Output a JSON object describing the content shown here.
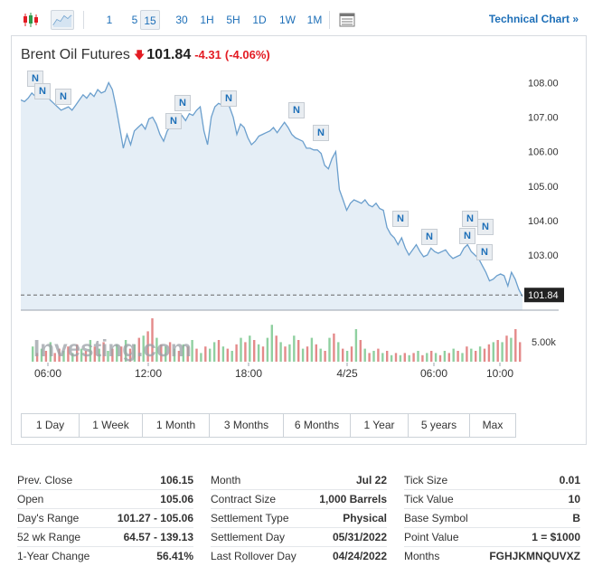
{
  "toolbar": {
    "intervals": [
      "1",
      "5",
      "15",
      "30",
      "1H",
      "5H",
      "1D",
      "1W",
      "1M"
    ],
    "active_interval": "15",
    "technical_link": "Technical Chart »"
  },
  "title": {
    "name": "Brent Oil Futures",
    "price": "101.84",
    "change": "-4.31",
    "change_pct": "(-4.06%)",
    "direction": "down"
  },
  "colors": {
    "accent": "#1d6fb8",
    "down": "#e31b23",
    "up": "#2e9a4a",
    "area_fill": "#e5eef6",
    "line": "#6b9fcd"
  },
  "chart_data": {
    "type": "area",
    "xlabel": "",
    "ylabel": "",
    "x_tick_labels": [
      "06:00",
      "12:00",
      "18:00",
      "4/25",
      "06:00",
      "10:00"
    ],
    "y_tick_labels": [
      "108.00",
      "107.00",
      "106.00",
      "105.00",
      "104.00",
      "103.00"
    ],
    "ylim": [
      101.4,
      108.3
    ],
    "current_price_label": "101.84",
    "volume_axis_label": "5.00k",
    "grid": false,
    "price_series": [
      107.5,
      107.45,
      107.55,
      107.7,
      107.6,
      107.75,
      107.85,
      107.7,
      107.5,
      107.4,
      107.3,
      107.2,
      107.25,
      107.3,
      107.2,
      107.35,
      107.5,
      107.65,
      107.55,
      107.7,
      107.6,
      107.8,
      107.7,
      107.75,
      108.0,
      107.8,
      107.3,
      106.7,
      106.1,
      106.5,
      106.2,
      106.6,
      106.7,
      106.8,
      106.65,
      106.95,
      107.0,
      106.8,
      106.5,
      106.3,
      106.6,
      106.75,
      106.9,
      107.0,
      107.05,
      106.9,
      107.1,
      107.05,
      107.2,
      107.3,
      106.6,
      106.2,
      107.0,
      107.3,
      107.4,
      107.35,
      107.4,
      107.3,
      107.0,
      106.5,
      106.8,
      106.7,
      106.4,
      106.2,
      106.3,
      106.45,
      106.5,
      106.55,
      106.6,
      106.7,
      106.55,
      106.7,
      106.85,
      106.7,
      106.5,
      106.4,
      106.35,
      106.3,
      106.1,
      106.1,
      106.05,
      106.05,
      105.95,
      105.6,
      105.5,
      105.8,
      106.0,
      104.9,
      104.6,
      104.3,
      104.5,
      104.6,
      104.55,
      104.5,
      104.6,
      104.45,
      104.4,
      104.5,
      104.35,
      104.3,
      103.8,
      103.6,
      103.5,
      103.3,
      103.5,
      103.2,
      103.0,
      103.15,
      103.3,
      103.1,
      102.95,
      103.0,
      103.2,
      103.1,
      103.05,
      103.1,
      103.15,
      103.0,
      102.9,
      102.95,
      103.0,
      103.2,
      103.3,
      103.1,
      103.0,
      102.9,
      102.7,
      102.5,
      102.25,
      102.3,
      102.4,
      102.45,
      102.4,
      102.1,
      102.5,
      102.3,
      102.0,
      101.8
    ],
    "volume_series": [
      {
        "v": 0.35,
        "d": "up"
      },
      {
        "v": 0.2,
        "d": "down"
      },
      {
        "v": 0.3,
        "d": "up"
      },
      {
        "v": 0.25,
        "d": "down"
      },
      {
        "v": 0.45,
        "d": "up"
      },
      {
        "v": 0.2,
        "d": "down"
      },
      {
        "v": 0.3,
        "d": "down"
      },
      {
        "v": 0.25,
        "d": "up"
      },
      {
        "v": 0.35,
        "d": "down"
      },
      {
        "v": 0.2,
        "d": "up"
      },
      {
        "v": 0.4,
        "d": "down"
      },
      {
        "v": 0.3,
        "d": "up"
      },
      {
        "v": 0.25,
        "d": "down"
      },
      {
        "v": 0.5,
        "d": "up"
      },
      {
        "v": 0.35,
        "d": "down"
      },
      {
        "v": 0.3,
        "d": "up"
      },
      {
        "v": 0.45,
        "d": "down"
      },
      {
        "v": 0.25,
        "d": "up"
      },
      {
        "v": 0.3,
        "d": "down"
      },
      {
        "v": 0.4,
        "d": "up"
      },
      {
        "v": 0.35,
        "d": "down"
      },
      {
        "v": 0.5,
        "d": "up"
      },
      {
        "v": 0.3,
        "d": "down"
      },
      {
        "v": 0.4,
        "d": "up"
      },
      {
        "v": 0.55,
        "d": "down"
      },
      {
        "v": 0.6,
        "d": "up"
      },
      {
        "v": 0.7,
        "d": "down"
      },
      {
        "v": 1.0,
        "d": "down"
      },
      {
        "v": 0.55,
        "d": "up"
      },
      {
        "v": 0.4,
        "d": "down"
      },
      {
        "v": 0.35,
        "d": "up"
      },
      {
        "v": 0.45,
        "d": "down"
      },
      {
        "v": 0.3,
        "d": "up"
      },
      {
        "v": 0.25,
        "d": "down"
      },
      {
        "v": 0.4,
        "d": "up"
      },
      {
        "v": 0.35,
        "d": "down"
      },
      {
        "v": 0.5,
        "d": "up"
      },
      {
        "v": 0.3,
        "d": "down"
      },
      {
        "v": 0.2,
        "d": "up"
      },
      {
        "v": 0.35,
        "d": "down"
      },
      {
        "v": 0.3,
        "d": "up"
      },
      {
        "v": 0.45,
        "d": "up"
      },
      {
        "v": 0.5,
        "d": "down"
      },
      {
        "v": 0.35,
        "d": "up"
      },
      {
        "v": 0.3,
        "d": "down"
      },
      {
        "v": 0.25,
        "d": "up"
      },
      {
        "v": 0.4,
        "d": "down"
      },
      {
        "v": 0.55,
        "d": "up"
      },
      {
        "v": 0.45,
        "d": "down"
      },
      {
        "v": 0.6,
        "d": "up"
      },
      {
        "v": 0.5,
        "d": "down"
      },
      {
        "v": 0.4,
        "d": "up"
      },
      {
        "v": 0.35,
        "d": "down"
      },
      {
        "v": 0.55,
        "d": "up"
      },
      {
        "v": 0.85,
        "d": "up"
      },
      {
        "v": 0.6,
        "d": "down"
      },
      {
        "v": 0.45,
        "d": "up"
      },
      {
        "v": 0.35,
        "d": "down"
      },
      {
        "v": 0.4,
        "d": "up"
      },
      {
        "v": 0.6,
        "d": "up"
      },
      {
        "v": 0.5,
        "d": "down"
      },
      {
        "v": 0.3,
        "d": "up"
      },
      {
        "v": 0.35,
        "d": "down"
      },
      {
        "v": 0.55,
        "d": "up"
      },
      {
        "v": 0.4,
        "d": "down"
      },
      {
        "v": 0.3,
        "d": "up"
      },
      {
        "v": 0.25,
        "d": "down"
      },
      {
        "v": 0.55,
        "d": "up"
      },
      {
        "v": 0.65,
        "d": "down"
      },
      {
        "v": 0.45,
        "d": "up"
      },
      {
        "v": 0.3,
        "d": "down"
      },
      {
        "v": 0.25,
        "d": "up"
      },
      {
        "v": 0.35,
        "d": "down"
      },
      {
        "v": 0.75,
        "d": "up"
      },
      {
        "v": 0.5,
        "d": "down"
      },
      {
        "v": 0.3,
        "d": "up"
      },
      {
        "v": 0.2,
        "d": "down"
      },
      {
        "v": 0.25,
        "d": "up"
      },
      {
        "v": 0.3,
        "d": "down"
      },
      {
        "v": 0.2,
        "d": "up"
      },
      {
        "v": 0.25,
        "d": "down"
      },
      {
        "v": 0.15,
        "d": "up"
      },
      {
        "v": 0.2,
        "d": "down"
      },
      {
        "v": 0.15,
        "d": "up"
      },
      {
        "v": 0.2,
        "d": "down"
      },
      {
        "v": 0.15,
        "d": "up"
      },
      {
        "v": 0.2,
        "d": "down"
      },
      {
        "v": 0.25,
        "d": "up"
      },
      {
        "v": 0.15,
        "d": "down"
      },
      {
        "v": 0.2,
        "d": "up"
      },
      {
        "v": 0.25,
        "d": "down"
      },
      {
        "v": 0.2,
        "d": "up"
      },
      {
        "v": 0.15,
        "d": "down"
      },
      {
        "v": 0.25,
        "d": "up"
      },
      {
        "v": 0.2,
        "d": "down"
      },
      {
        "v": 0.3,
        "d": "up"
      },
      {
        "v": 0.25,
        "d": "down"
      },
      {
        "v": 0.2,
        "d": "up"
      },
      {
        "v": 0.35,
        "d": "down"
      },
      {
        "v": 0.3,
        "d": "up"
      },
      {
        "v": 0.25,
        "d": "down"
      },
      {
        "v": 0.35,
        "d": "up"
      },
      {
        "v": 0.3,
        "d": "down"
      },
      {
        "v": 0.4,
        "d": "down"
      },
      {
        "v": 0.45,
        "d": "up"
      },
      {
        "v": 0.5,
        "d": "down"
      },
      {
        "v": 0.45,
        "d": "up"
      },
      {
        "v": 0.6,
        "d": "down"
      },
      {
        "v": 0.55,
        "d": "up"
      },
      {
        "v": 0.75,
        "d": "down"
      },
      {
        "v": 0.45,
        "d": "down"
      }
    ],
    "news_markers": [
      "N",
      "N",
      "N",
      "N",
      "N",
      "N",
      "N",
      "N",
      "N",
      "N",
      "N",
      "N",
      "N",
      "N",
      "N"
    ],
    "watermark": "Investing.com"
  },
  "ranges": [
    "1 Day",
    "1 Week",
    "1 Month",
    "3 Months",
    "6 Months",
    "1 Year",
    "5 years",
    "Max"
  ],
  "info": {
    "col1": [
      {
        "label": "Prev. Close",
        "value": "106.15"
      },
      {
        "label": "Open",
        "value": "105.06"
      },
      {
        "label": "Day's Range",
        "value": "101.27 - 105.06"
      },
      {
        "label": "52 wk Range",
        "value": "64.57 - 139.13"
      },
      {
        "label": "1-Year Change",
        "value": "56.41%"
      }
    ],
    "col2": [
      {
        "label": "Month",
        "value": "Jul 22"
      },
      {
        "label": "Contract Size",
        "value": "1,000 Barrels"
      },
      {
        "label": "Settlement Type",
        "value": "Physical"
      },
      {
        "label": "Settlement Day",
        "value": "05/31/2022"
      },
      {
        "label": "Last Rollover Day",
        "value": "04/24/2022"
      }
    ],
    "col3": [
      {
        "label": "Tick Size",
        "value": "0.01"
      },
      {
        "label": "Tick Value",
        "value": "10"
      },
      {
        "label": "Base Symbol",
        "value": "B"
      },
      {
        "label": "Point Value",
        "value": "1 = $1000"
      },
      {
        "label": "Months",
        "value": "FGHJKMNQUVXZ"
      }
    ]
  }
}
